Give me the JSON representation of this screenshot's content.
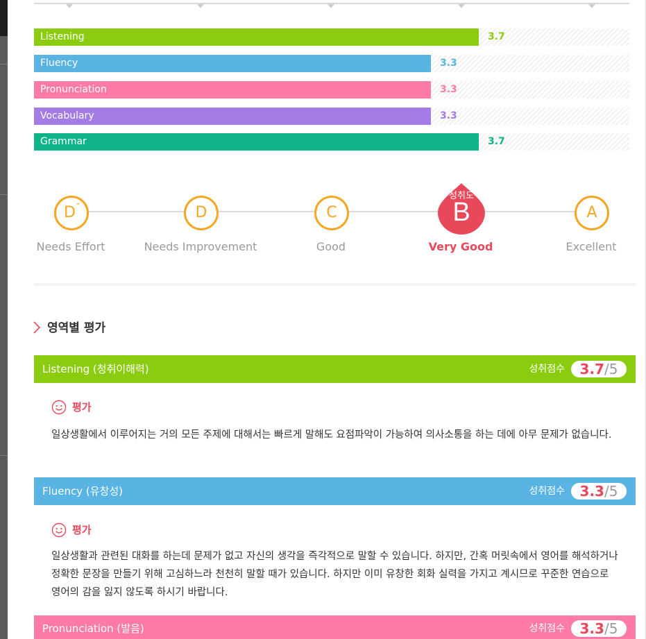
{
  "colors": {
    "listening": "#8ccc10",
    "fluency": "#5ab4e3",
    "pronunciation": "#fe7ba8",
    "vocabulary": "#a57be6",
    "grammar": "#10b48b",
    "accent_red": "#e8485a",
    "grade_orange": "#f5a623"
  },
  "score_bars": [
    {
      "label": "Listening",
      "value": "3.7"
    },
    {
      "label": "Fluency",
      "value": "3.3"
    },
    {
      "label": "Pronunciation",
      "value": "3.3"
    },
    {
      "label": "Vocabulary",
      "value": "3.3"
    },
    {
      "label": "Grammar",
      "value": "3.7"
    }
  ],
  "grade_scale": {
    "levels": [
      {
        "letter": "D",
        "modifier": "-",
        "label": "Needs Effort"
      },
      {
        "letter": "D",
        "modifier": "",
        "label": "Needs Improvement"
      },
      {
        "letter": "C",
        "modifier": "",
        "label": "Good"
      },
      {
        "letter": "B",
        "modifier": "",
        "label": "Very Good"
      },
      {
        "letter": "A",
        "modifier": "",
        "label": "Excellent"
      }
    ],
    "current": {
      "caption": "성취도",
      "letter": "B",
      "label": "Very Good"
    }
  },
  "section_title": "영역별 평가",
  "categories": [
    {
      "name": "Listening (청취이해력)",
      "score_label": "성취점수",
      "score": "3.7",
      "max": "5",
      "eval_title": "평가",
      "eval_text": "일상생활에서 이루어지는 거의 모든 주제에 대해서는 빠르게 말해도 요점파악이 가능하여 의사소통을 하는 데에 아무 문제가 없습니다."
    },
    {
      "name": "Fluency (유창성)",
      "score_label": "성취점수",
      "score": "3.3",
      "max": "5",
      "eval_title": "평가",
      "eval_text": "일상생활과 관련된 대화를 하는데 문제가 없고 자신의 생각을 즉각적으로 말할 수 있습니다. 하지만, 간혹 머릿속에서 영어를 해석하거나 정확한 문장을 만들기 위해 고심하느라 천천히 말할 때가 있습니다. 하지만 이미 유창한 회화 실력을 가지고 계시므로 꾸준한 연습으로 영어의 감을 잃지 않도록 하시기 바랍니다."
    },
    {
      "name": "Pronunciation (발음)",
      "score_label": "성취점수",
      "score": "3.3",
      "max": "5"
    }
  ]
}
